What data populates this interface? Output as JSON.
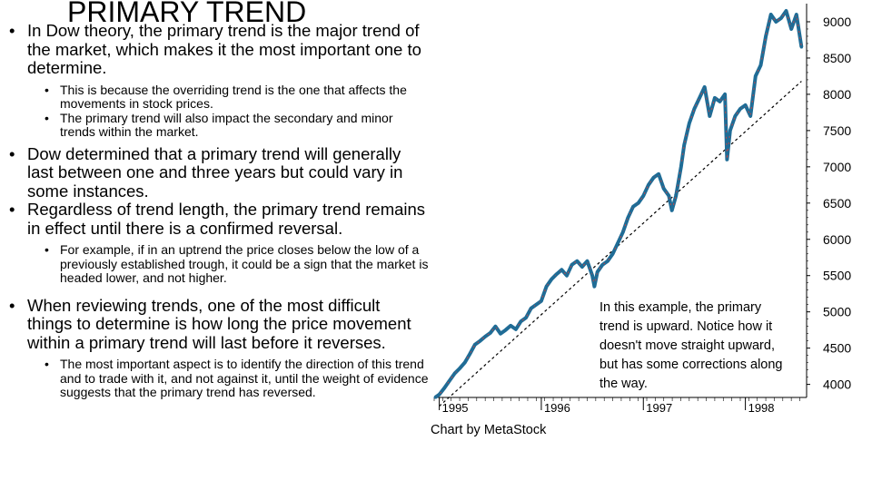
{
  "slide": {
    "title": "PRIMARY TREND",
    "bullets": [
      {
        "level": 1,
        "text": "In Dow theory, the primary trend is the major trend of the market, which makes it the most important one to determine."
      },
      {
        "level": 2,
        "text": "This is because the overriding trend is the one that affects the movements in stock prices."
      },
      {
        "level": 2,
        "text": "The primary trend will also impact the secondary and minor trends within the market."
      },
      {
        "level": 1,
        "text": "Dow determined that a primary trend will generally last between one and three years but could vary in some instances."
      },
      {
        "level": 1,
        "text": "Regardless of trend length, the primary trend remains in effect until there is a confirmed reversal."
      },
      {
        "level": 2,
        "text": "For example, if in an uptrend the price closes below the low of a previously established trough, it could be a sign that the market is headed lower, and not higher."
      },
      {
        "level": 1,
        "text": "When reviewing trends, one of the most difficult things to determine is how long the price movement within a primary trend will last before it reverses."
      },
      {
        "level": 2,
        "text": "The most important aspect is to identify the direction of this trend and to trade with it, and not against it, until the weight of evidence suggests that the primary trend has reversed."
      }
    ],
    "bullet_glyph": "•"
  },
  "chart_data": {
    "type": "line",
    "series": [
      {
        "color": "#1f6c96",
        "accent_color": "#d0433f",
        "x": [
          1994.96,
          1995.0,
          1995.05,
          1995.1,
          1995.15,
          1995.2,
          1995.25,
          1995.3,
          1995.35,
          1995.4,
          1995.45,
          1995.5,
          1995.55,
          1995.6,
          1995.65,
          1995.7,
          1995.75,
          1995.8,
          1995.85,
          1995.9,
          1995.95,
          1996.0,
          1996.05,
          1996.1,
          1996.15,
          1996.2,
          1996.25,
          1996.3,
          1996.35,
          1996.4,
          1996.45,
          1996.5,
          1996.52,
          1996.55,
          1996.6,
          1996.65,
          1996.7,
          1996.75,
          1996.8,
          1996.85,
          1996.9,
          1996.95,
          1997.0,
          1997.05,
          1997.1,
          1997.15,
          1997.2,
          1997.25,
          1997.28,
          1997.32,
          1997.37,
          1997.4,
          1997.45,
          1997.5,
          1997.55,
          1997.6,
          1997.65,
          1997.7,
          1997.75,
          1997.8,
          1997.82,
          1997.85,
          1997.9,
          1997.95,
          1998.0,
          1998.05,
          1998.1,
          1998.15,
          1998.2,
          1998.25,
          1998.3,
          1998.35,
          1998.4,
          1998.45,
          1998.5,
          1998.55
        ],
        "y": [
          3820,
          3860,
          3950,
          4050,
          4150,
          4220,
          4300,
          4420,
          4550,
          4600,
          4660,
          4710,
          4800,
          4700,
          4750,
          4810,
          4760,
          4870,
          4920,
          5050,
          5100,
          5150,
          5350,
          5450,
          5520,
          5580,
          5500,
          5650,
          5700,
          5620,
          5700,
          5500,
          5350,
          5550,
          5650,
          5700,
          5800,
          5950,
          6100,
          6300,
          6450,
          6500,
          6600,
          6750,
          6850,
          6900,
          6700,
          6600,
          6400,
          6600,
          7000,
          7300,
          7600,
          7800,
          7950,
          8100,
          7700,
          7950,
          7900,
          8000,
          7100,
          7500,
          7700,
          7800,
          7850,
          7700,
          8250,
          8400,
          8800,
          9100,
          9000,
          9050,
          9150,
          8900,
          9100,
          8650
        ]
      }
    ],
    "trendline": {
      "style": "dashed",
      "x": [
        1995.0,
        1998.55
      ],
      "y": [
        3700,
        8180
      ]
    },
    "xlim": [
      1994.95,
      1998.6
    ],
    "ylim": [
      3820,
      9250
    ],
    "x_ticks": [
      {
        "value": 1995.0,
        "label": "1995"
      },
      {
        "value": 1996.0,
        "label": "1996"
      },
      {
        "value": 1997.0,
        "label": "1997"
      },
      {
        "value": 1998.0,
        "label": "1998"
      }
    ],
    "y_ticks": [
      4000,
      4500,
      5000,
      5500,
      6000,
      6500,
      7000,
      7500,
      8000,
      8500,
      9000
    ],
    "y_axis_position": "right",
    "annotation": [
      "In this example, the primary",
      "trend is upward. Notice how it",
      "doesn't move straight upward,",
      "but has some corrections along",
      "the way."
    ],
    "source_note": "Chart by MetaStock",
    "grid": false,
    "legend": "none"
  }
}
